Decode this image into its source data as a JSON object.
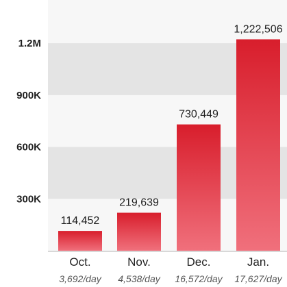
{
  "chart_data": {
    "type": "bar",
    "categories": [
      "Oct.",
      "Nov.",
      "Dec.",
      "Jan."
    ],
    "sublabels": [
      "3,692/day",
      "4,538/day",
      "16,572/day",
      "17,627/day"
    ],
    "values": [
      114452,
      219639,
      730449,
      1222506
    ],
    "value_labels": [
      "114,452",
      "219,639",
      "730,449",
      "1,222,506"
    ],
    "yticks": [
      {
        "value": 300000,
        "label": "300K"
      },
      {
        "value": 600000,
        "label": "600K"
      },
      {
        "value": 900000,
        "label": "900K"
      },
      {
        "value": 1200000,
        "label": "1.2M"
      }
    ],
    "ylim": [
      0,
      1450000
    ],
    "grid": "alternating horizontal bands",
    "colors": {
      "bar_top": "#d81e2c",
      "bar_bottom": "#f0707c",
      "band": "#e4e4e4",
      "plot_bg": "#f7f7f7",
      "tick_text": "#1f1f1f",
      "value_text": "#1f1f1f",
      "category_text": "#222222",
      "sublabel_text": "#555555"
    }
  }
}
